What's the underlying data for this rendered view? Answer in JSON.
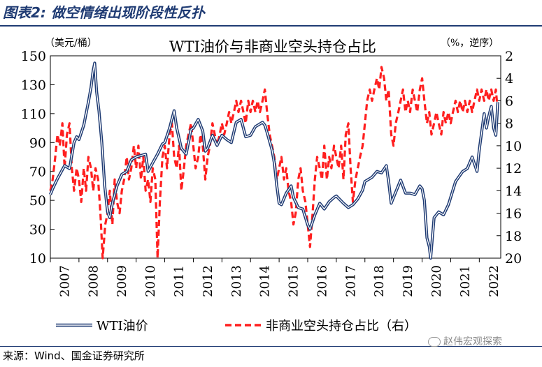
{
  "figure_title": "图表2: 做空情绪出现阶段性反扑",
  "source": "来源：Wind、国金证券研究所",
  "watermark": "赵伟宏观探索",
  "colors": {
    "wti": "#1f3b73",
    "short": "#ff1f1f",
    "title": "#1f3b73"
  },
  "chart_data": {
    "type": "line",
    "title": "WTI油价与非商业空头持仓占比",
    "y_left_unit": "（美元/桶）",
    "y_right_unit": "（%，逆序）",
    "x_ticks": [
      "2007",
      "2008",
      "2009",
      "2010",
      "2011",
      "2012",
      "2013",
      "2014",
      "2015",
      "2016",
      "2017",
      "2018",
      "2019",
      "2020",
      "2021",
      "2022"
    ],
    "xlim": [
      2007.0,
      2022.75
    ],
    "ylim_left": [
      10,
      150
    ],
    "ylim_right": [
      20,
      2
    ],
    "y_right_inverted": true,
    "yticks_left": [
      "10",
      "30",
      "50",
      "70",
      "90",
      "110",
      "130",
      "150"
    ],
    "yticks_right": [
      "2",
      "4",
      "6",
      "8",
      "10",
      "12",
      "14",
      "16",
      "18",
      "20"
    ],
    "legend_position": "bottom",
    "series": [
      {
        "name": "WTI油价",
        "axis": "left",
        "style": "double-line",
        "points": [
          [
            2007.0,
            54
          ],
          [
            2007.08,
            58
          ],
          [
            2007.25,
            65
          ],
          [
            2007.5,
            74
          ],
          [
            2007.67,
            72
          ],
          [
            2007.83,
            90
          ],
          [
            2007.92,
            94
          ],
          [
            2008.0,
            92
          ],
          [
            2008.17,
            102
          ],
          [
            2008.33,
            118
          ],
          [
            2008.42,
            128
          ],
          [
            2008.5,
            140
          ],
          [
            2008.55,
            145
          ],
          [
            2008.62,
            125
          ],
          [
            2008.7,
            112
          ],
          [
            2008.8,
            90
          ],
          [
            2008.9,
            60
          ],
          [
            2009.0,
            42
          ],
          [
            2009.08,
            38
          ],
          [
            2009.17,
            48
          ],
          [
            2009.33,
            60
          ],
          [
            2009.5,
            68
          ],
          [
            2009.67,
            70
          ],
          [
            2009.83,
            78
          ],
          [
            2010.0,
            80
          ],
          [
            2010.33,
            82
          ],
          [
            2010.42,
            70
          ],
          [
            2010.58,
            76
          ],
          [
            2010.75,
            82
          ],
          [
            2010.92,
            89
          ],
          [
            2011.0,
            90
          ],
          [
            2011.17,
            100
          ],
          [
            2011.33,
            112
          ],
          [
            2011.42,
            100
          ],
          [
            2011.58,
            86
          ],
          [
            2011.75,
            82
          ],
          [
            2011.92,
            99
          ],
          [
            2012.0,
            100
          ],
          [
            2012.17,
            106
          ],
          [
            2012.33,
            98
          ],
          [
            2012.42,
            84
          ],
          [
            2012.5,
            86
          ],
          [
            2012.67,
            95
          ],
          [
            2012.83,
            88
          ],
          [
            2013.0,
            95
          ],
          [
            2013.17,
            92
          ],
          [
            2013.33,
            90
          ],
          [
            2013.5,
            104
          ],
          [
            2013.67,
            106
          ],
          [
            2013.83,
            94
          ],
          [
            2014.0,
            95
          ],
          [
            2014.17,
            101
          ],
          [
            2014.42,
            104
          ],
          [
            2014.5,
            102
          ],
          [
            2014.58,
            97
          ],
          [
            2014.75,
            85
          ],
          [
            2014.83,
            76
          ],
          [
            2014.92,
            60
          ],
          [
            2015.0,
            48
          ],
          [
            2015.08,
            47
          ],
          [
            2015.25,
            55
          ],
          [
            2015.42,
            60
          ],
          [
            2015.5,
            52
          ],
          [
            2015.67,
            45
          ],
          [
            2015.83,
            44
          ],
          [
            2016.0,
            33
          ],
          [
            2016.08,
            30
          ],
          [
            2016.25,
            40
          ],
          [
            2016.42,
            48
          ],
          [
            2016.58,
            44
          ],
          [
            2016.75,
            49
          ],
          [
            2016.92,
            52
          ],
          [
            2017.0,
            53
          ],
          [
            2017.25,
            48
          ],
          [
            2017.42,
            45
          ],
          [
            2017.58,
            47
          ],
          [
            2017.75,
            51
          ],
          [
            2017.92,
            57
          ],
          [
            2018.0,
            63
          ],
          [
            2018.25,
            66
          ],
          [
            2018.42,
            70
          ],
          [
            2018.58,
            69
          ],
          [
            2018.75,
            74
          ],
          [
            2018.83,
            63
          ],
          [
            2018.92,
            48
          ],
          [
            2019.0,
            52
          ],
          [
            2019.25,
            64
          ],
          [
            2019.42,
            55
          ],
          [
            2019.58,
            55
          ],
          [
            2019.75,
            54
          ],
          [
            2019.92,
            60
          ],
          [
            2020.0,
            58
          ],
          [
            2020.08,
            50
          ],
          [
            2020.17,
            24
          ],
          [
            2020.25,
            18
          ],
          [
            2020.3,
            10
          ],
          [
            2020.33,
            17
          ],
          [
            2020.42,
            38
          ],
          [
            2020.58,
            42
          ],
          [
            2020.75,
            40
          ],
          [
            2020.92,
            47
          ],
          [
            2021.0,
            52
          ],
          [
            2021.17,
            63
          ],
          [
            2021.42,
            70
          ],
          [
            2021.58,
            72
          ],
          [
            2021.75,
            80
          ],
          [
            2021.92,
            70
          ],
          [
            2022.0,
            85
          ],
          [
            2022.17,
            110
          ],
          [
            2022.25,
            100
          ],
          [
            2022.33,
            108
          ],
          [
            2022.42,
            115
          ],
          [
            2022.5,
            100
          ],
          [
            2022.58,
            95
          ],
          [
            2022.65,
            118
          ]
        ]
      },
      {
        "name": "非商业空头持仓占比（右）",
        "axis": "right",
        "style": "dashed",
        "points": [
          [
            2007.0,
            14
          ],
          [
            2007.08,
            13
          ],
          [
            2007.17,
            11
          ],
          [
            2007.25,
            9
          ],
          [
            2007.33,
            10
          ],
          [
            2007.42,
            8
          ],
          [
            2007.5,
            12
          ],
          [
            2007.58,
            9
          ],
          [
            2007.67,
            8
          ],
          [
            2007.75,
            12
          ],
          [
            2007.83,
            14
          ],
          [
            2007.92,
            12
          ],
          [
            2008.0,
            13
          ],
          [
            2008.08,
            15
          ],
          [
            2008.17,
            12
          ],
          [
            2008.25,
            14
          ],
          [
            2008.33,
            11
          ],
          [
            2008.42,
            12
          ],
          [
            2008.5,
            14
          ],
          [
            2008.58,
            12
          ],
          [
            2008.67,
            13
          ],
          [
            2008.75,
            16
          ],
          [
            2008.83,
            20
          ],
          [
            2008.92,
            17
          ],
          [
            2009.0,
            16
          ],
          [
            2009.08,
            14
          ],
          [
            2009.17,
            17
          ],
          [
            2009.25,
            13
          ],
          [
            2009.33,
            15
          ],
          [
            2009.42,
            16
          ],
          [
            2009.5,
            14
          ],
          [
            2009.58,
            13
          ],
          [
            2009.67,
            11
          ],
          [
            2009.75,
            13
          ],
          [
            2009.83,
            12
          ],
          [
            2009.92,
            10
          ],
          [
            2010.0,
            12
          ],
          [
            2010.08,
            10
          ],
          [
            2010.17,
            13
          ],
          [
            2010.25,
            11
          ],
          [
            2010.33,
            14
          ],
          [
            2010.42,
            13
          ],
          [
            2010.5,
            15
          ],
          [
            2010.58,
            12
          ],
          [
            2010.67,
            13
          ],
          [
            2010.75,
            20
          ],
          [
            2010.83,
            15
          ],
          [
            2010.92,
            11
          ],
          [
            2011.0,
            10
          ],
          [
            2011.08,
            12
          ],
          [
            2011.17,
            9
          ],
          [
            2011.25,
            8
          ],
          [
            2011.33,
            11
          ],
          [
            2011.42,
            12
          ],
          [
            2011.5,
            10
          ],
          [
            2011.58,
            14
          ],
          [
            2011.67,
            12
          ],
          [
            2011.75,
            10
          ],
          [
            2011.83,
            9
          ],
          [
            2011.92,
            8
          ],
          [
            2012.0,
            10
          ],
          [
            2012.08,
            12
          ],
          [
            2012.17,
            11
          ],
          [
            2012.25,
            9
          ],
          [
            2012.33,
            10
          ],
          [
            2012.42,
            13
          ],
          [
            2012.5,
            11
          ],
          [
            2012.58,
            10
          ],
          [
            2012.67,
            8
          ],
          [
            2012.75,
            9
          ],
          [
            2012.83,
            10
          ],
          [
            2012.92,
            9
          ],
          [
            2013.0,
            8
          ],
          [
            2013.08,
            9
          ],
          [
            2013.17,
            8
          ],
          [
            2013.25,
            7
          ],
          [
            2013.33,
            8
          ],
          [
            2013.42,
            7
          ],
          [
            2013.5,
            6
          ],
          [
            2013.58,
            7
          ],
          [
            2013.67,
            6
          ],
          [
            2013.75,
            7
          ],
          [
            2013.83,
            8
          ],
          [
            2013.92,
            6
          ],
          [
            2014.0,
            7
          ],
          [
            2014.08,
            6
          ],
          [
            2014.17,
            7
          ],
          [
            2014.25,
            6
          ],
          [
            2014.33,
            7
          ],
          [
            2014.42,
            6
          ],
          [
            2014.5,
            5
          ],
          [
            2014.58,
            7
          ],
          [
            2014.67,
            9
          ],
          [
            2014.75,
            10
          ],
          [
            2014.83,
            11
          ],
          [
            2014.92,
            13
          ],
          [
            2015.0,
            12
          ],
          [
            2015.08,
            11
          ],
          [
            2015.17,
            13
          ],
          [
            2015.25,
            12
          ],
          [
            2015.33,
            14
          ],
          [
            2015.42,
            15
          ],
          [
            2015.5,
            17
          ],
          [
            2015.58,
            16
          ],
          [
            2015.67,
            13
          ],
          [
            2015.75,
            12
          ],
          [
            2015.83,
            14
          ],
          [
            2015.92,
            15
          ],
          [
            2016.0,
            17
          ],
          [
            2016.08,
            19
          ],
          [
            2016.17,
            16
          ],
          [
            2016.25,
            13
          ],
          [
            2016.33,
            11
          ],
          [
            2016.42,
            12
          ],
          [
            2016.5,
            13
          ],
          [
            2016.58,
            10
          ],
          [
            2016.67,
            13
          ],
          [
            2016.75,
            11
          ],
          [
            2016.83,
            12
          ],
          [
            2016.92,
            10
          ],
          [
            2017.0,
            11
          ],
          [
            2017.08,
            12
          ],
          [
            2017.17,
            10
          ],
          [
            2017.25,
            13
          ],
          [
            2017.33,
            9
          ],
          [
            2017.42,
            8
          ],
          [
            2017.5,
            12
          ],
          [
            2017.58,
            15
          ],
          [
            2017.67,
            13
          ],
          [
            2017.75,
            12
          ],
          [
            2017.83,
            11
          ],
          [
            2017.92,
            10
          ],
          [
            2018.0,
            8
          ],
          [
            2018.08,
            6
          ],
          [
            2018.17,
            5
          ],
          [
            2018.25,
            6
          ],
          [
            2018.33,
            5
          ],
          [
            2018.42,
            4
          ],
          [
            2018.5,
            5
          ],
          [
            2018.58,
            3
          ],
          [
            2018.67,
            4
          ],
          [
            2018.75,
            6
          ],
          [
            2018.83,
            5
          ],
          [
            2018.92,
            9
          ],
          [
            2019.0,
            10
          ],
          [
            2019.08,
            8
          ],
          [
            2019.17,
            7
          ],
          [
            2019.25,
            6
          ],
          [
            2019.33,
            5
          ],
          [
            2019.42,
            7
          ],
          [
            2019.5,
            6
          ],
          [
            2019.58,
            7
          ],
          [
            2019.67,
            5
          ],
          [
            2019.75,
            6
          ],
          [
            2019.83,
            7
          ],
          [
            2019.92,
            5
          ],
          [
            2020.0,
            4
          ],
          [
            2020.08,
            6
          ],
          [
            2020.17,
            8
          ],
          [
            2020.25,
            7
          ],
          [
            2020.33,
            9
          ],
          [
            2020.42,
            8
          ],
          [
            2020.5,
            7
          ],
          [
            2020.58,
            8
          ],
          [
            2020.67,
            9
          ],
          [
            2020.75,
            7
          ],
          [
            2020.83,
            8
          ],
          [
            2020.92,
            7
          ],
          [
            2021.0,
            8
          ],
          [
            2021.08,
            7
          ],
          [
            2021.17,
            6
          ],
          [
            2021.25,
            7
          ],
          [
            2021.33,
            6
          ],
          [
            2021.42,
            7
          ],
          [
            2021.5,
            6
          ],
          [
            2021.58,
            7
          ],
          [
            2021.67,
            6
          ],
          [
            2021.75,
            7
          ],
          [
            2021.83,
            6
          ],
          [
            2021.92,
            5
          ],
          [
            2022.0,
            6
          ],
          [
            2022.08,
            5
          ],
          [
            2022.17,
            6
          ],
          [
            2022.25,
            5
          ],
          [
            2022.33,
            6
          ],
          [
            2022.42,
            5
          ],
          [
            2022.5,
            6
          ],
          [
            2022.58,
            5
          ],
          [
            2022.65,
            7
          ]
        ]
      }
    ]
  }
}
